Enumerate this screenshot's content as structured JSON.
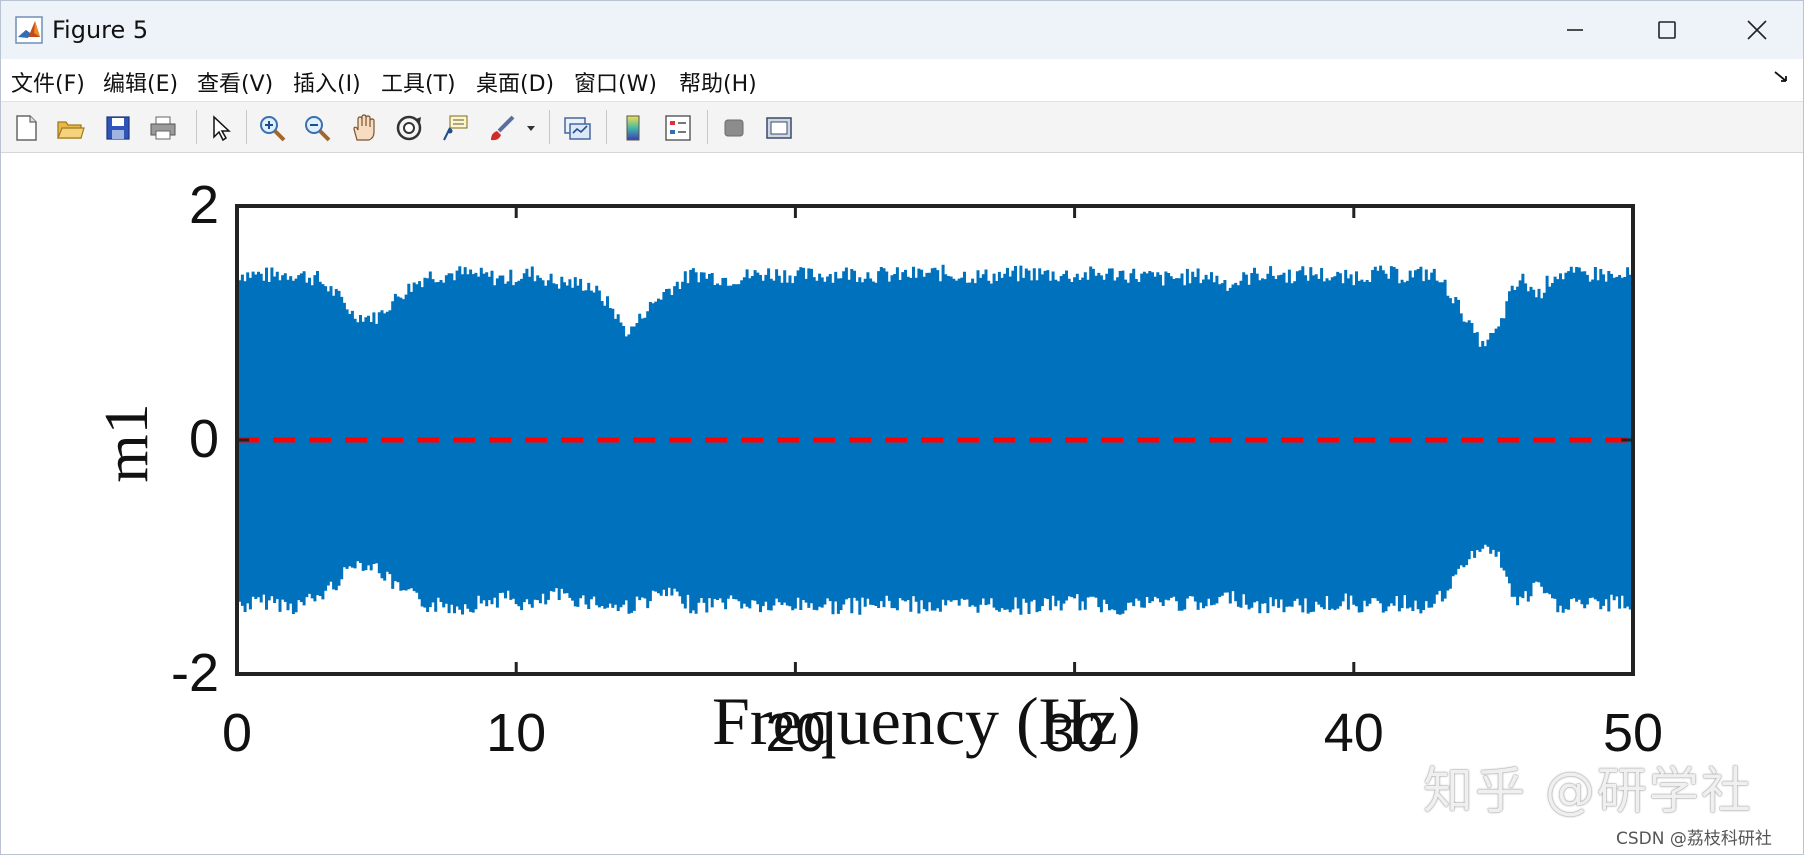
{
  "window": {
    "title": "Figure 5",
    "minimize_icon": "minimize-icon",
    "maximize_icon": "maximize-icon",
    "close_icon": "close-icon"
  },
  "menu": {
    "items": [
      "文件(F)",
      "编辑(E)",
      "查看(V)",
      "插入(I)",
      "工具(T)",
      "桌面(D)",
      "窗口(W)",
      "帮助(H)"
    ]
  },
  "toolbar": {
    "icons": [
      "new-figure-icon",
      "open-file-icon",
      "save-icon",
      "print-icon",
      "pointer-icon",
      "zoom-in-icon",
      "zoom-out-icon",
      "pan-hand-icon",
      "rotate-3d-icon",
      "data-cursor-icon",
      "brush-icon",
      "link-plot-icon",
      "colorbar-icon",
      "legend-icon",
      "hide-plot-tools-icon",
      "show-plot-tools-icon"
    ]
  },
  "chart_data": {
    "type": "line",
    "xlabel": "Frequency (Hz)",
    "ylabel": "m1",
    "xlim": [
      0,
      50
    ],
    "ylim": [
      -2,
      2
    ],
    "xticks": [
      "0",
      "10",
      "20",
      "30",
      "40",
      "50"
    ],
    "yticks": [
      "2",
      "0",
      "-2"
    ],
    "grid": false,
    "series": [
      {
        "style": "solid",
        "color": "#0072bd",
        "amplitude_envelope": {
          "x": [
            0,
            1.2,
            2.0,
            2.9,
            3.6,
            4.2,
            5.0,
            5.8,
            6.8,
            8.0,
            9.6,
            10.6,
            11.4,
            12.6,
            13.4,
            14.0,
            14.6,
            15.4,
            16.4,
            17.6,
            19.0,
            20.4,
            22.0,
            23.6,
            25.2,
            26.8,
            28.4,
            30.0,
            31.6,
            33.2,
            34.8,
            35.6,
            36.6,
            37.6,
            38.6,
            39.6,
            40.6,
            41.8,
            42.8,
            43.4,
            44.0,
            44.6,
            45.2,
            45.6,
            46.0,
            46.6,
            47.2,
            48.0,
            48.8,
            49.5,
            50
          ],
          "upper": [
            1.5,
            1.48,
            1.5,
            1.45,
            1.3,
            1.12,
            1.1,
            1.3,
            1.48,
            1.5,
            1.45,
            1.5,
            1.42,
            1.4,
            1.2,
            0.95,
            1.15,
            1.35,
            1.5,
            1.45,
            1.5,
            1.48,
            1.5,
            1.48,
            1.5,
            1.47,
            1.5,
            1.48,
            1.5,
            1.45,
            1.48,
            1.4,
            1.5,
            1.48,
            1.5,
            1.45,
            1.5,
            1.48,
            1.5,
            1.35,
            1.1,
            0.85,
            1.0,
            1.3,
            1.45,
            1.3,
            1.5,
            1.48,
            1.5,
            1.45,
            1.5
          ],
          "lower": [
            -1.5,
            -1.45,
            -1.5,
            -1.42,
            -1.28,
            -1.1,
            -1.15,
            -1.35,
            -1.48,
            -1.5,
            -1.42,
            -1.5,
            -1.4,
            -1.45,
            -1.5,
            -1.5,
            -1.45,
            -1.38,
            -1.5,
            -1.45,
            -1.5,
            -1.48,
            -1.5,
            -1.47,
            -1.5,
            -1.48,
            -1.5,
            -1.46,
            -1.5,
            -1.45,
            -1.5,
            -1.4,
            -1.5,
            -1.48,
            -1.5,
            -1.45,
            -1.5,
            -1.47,
            -1.5,
            -1.35,
            -1.1,
            -0.95,
            -1.05,
            -1.35,
            -1.48,
            -1.3,
            -1.5,
            -1.46,
            -1.5,
            -1.45,
            -1.5
          ]
        }
      },
      {
        "style": "dashed",
        "color": "#ff0000",
        "x": [
          0,
          50
        ],
        "y": [
          0,
          0
        ]
      }
    ]
  },
  "watermark": {
    "text": "知乎 @研学社",
    "credit": "CSDN @荔枝科研社"
  }
}
